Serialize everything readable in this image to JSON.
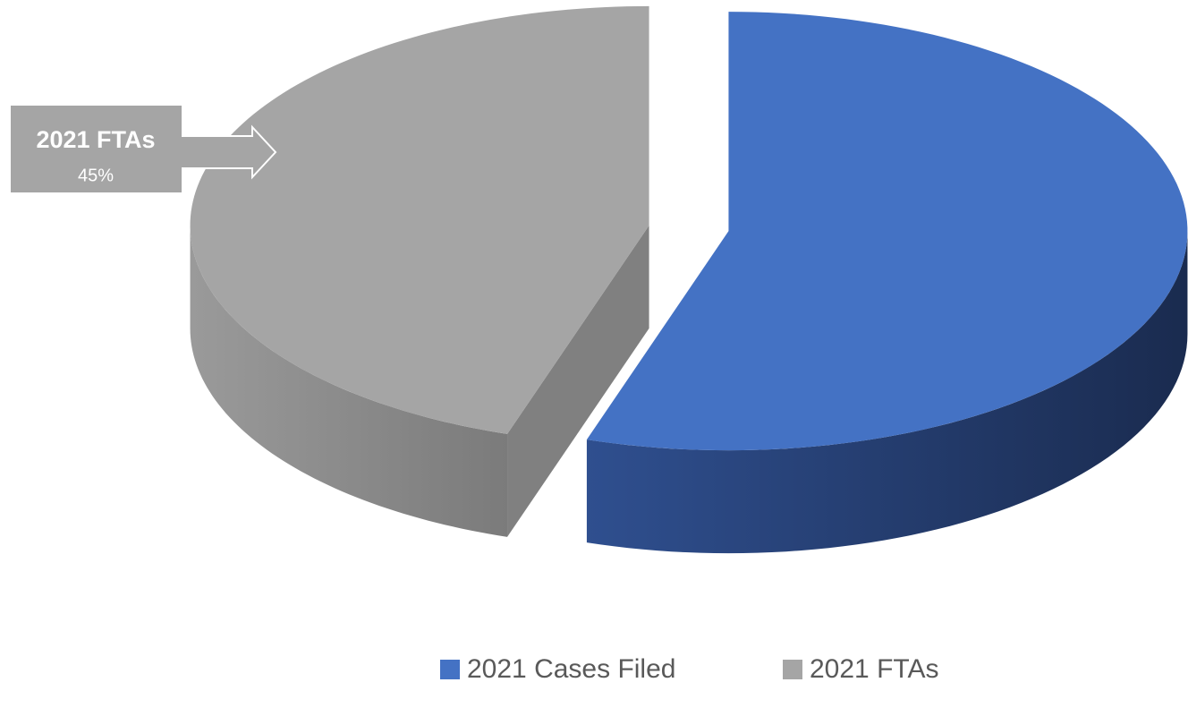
{
  "chart_data": {
    "type": "pie3d",
    "categories": [
      "2021 Cases Filed",
      "2021 FTAs"
    ],
    "values": [
      55,
      45
    ],
    "value_labels": [
      null,
      "45%"
    ],
    "colors": [
      "#4472c4",
      "#a5a5a5"
    ],
    "exploded": true,
    "legend": "bottom"
  }
}
